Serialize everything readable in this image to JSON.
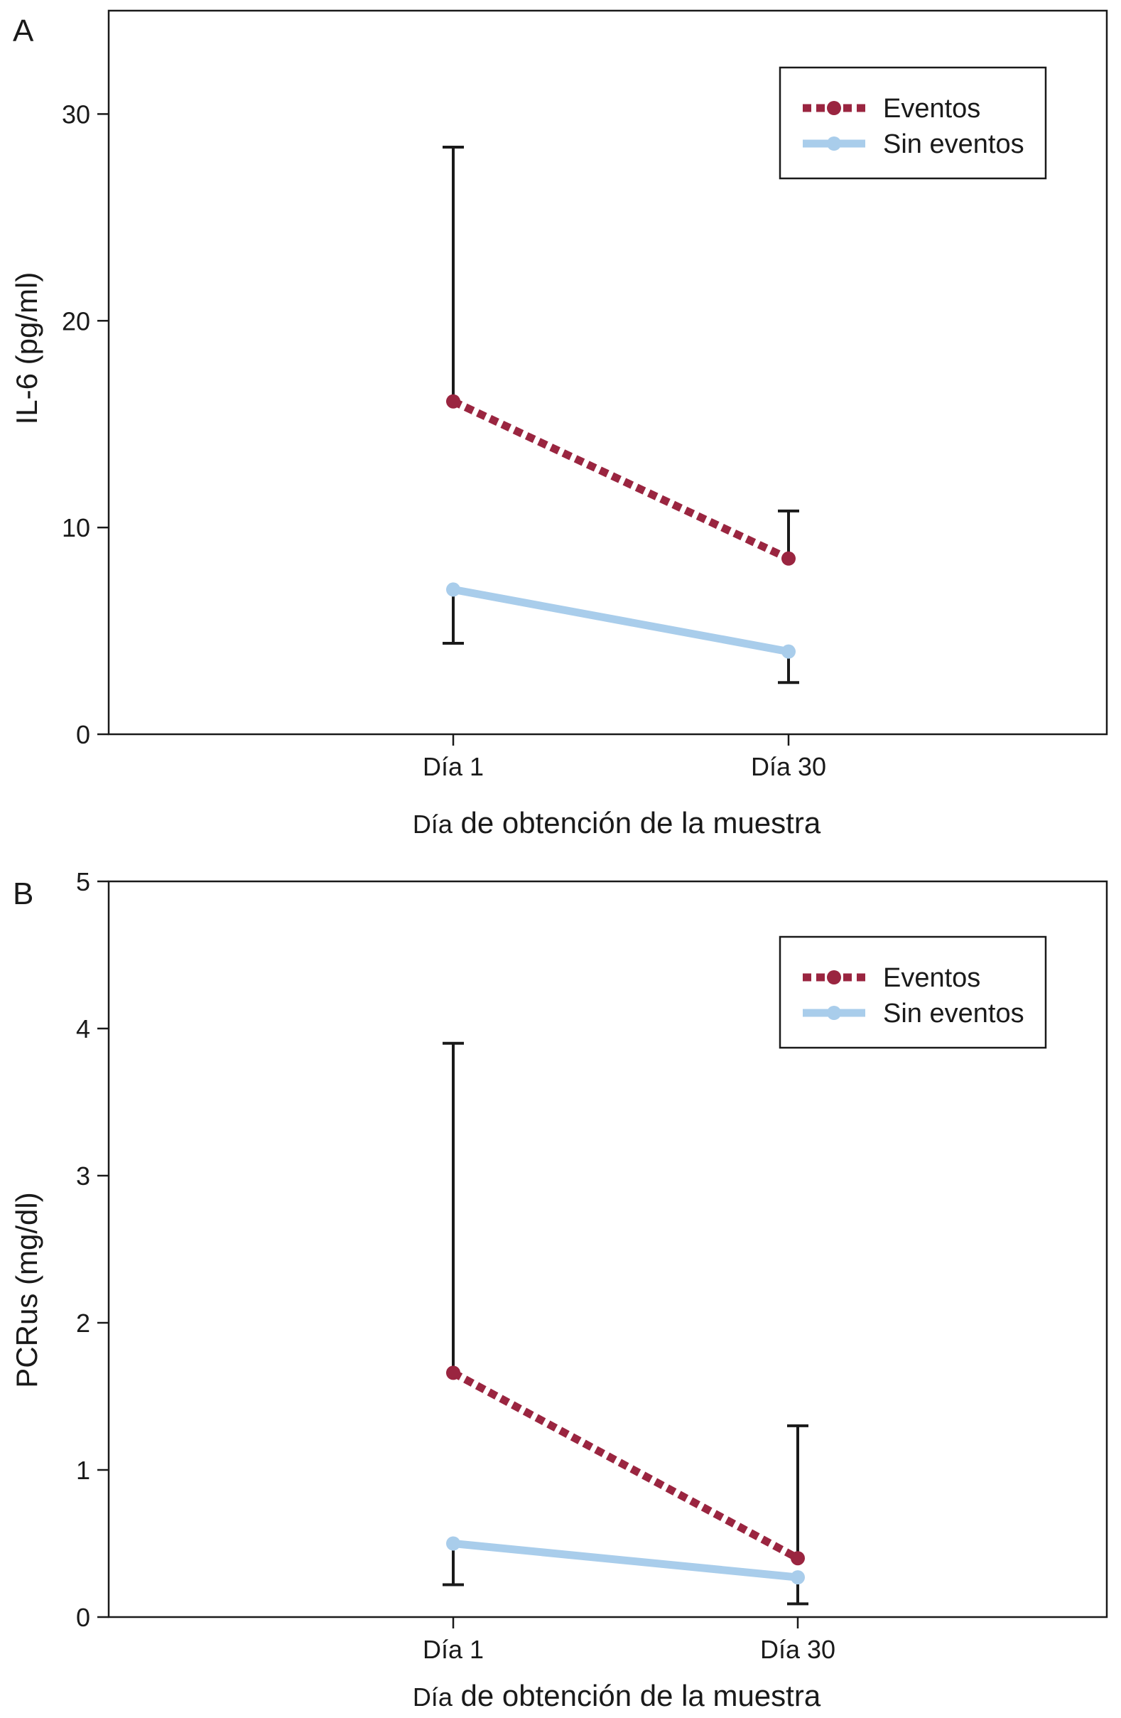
{
  "colors": {
    "eventos": "#9a2540",
    "sin_eventos": "#a9cdeb",
    "errorbar": "#1a1a1a",
    "axis": "#1a1a1a"
  },
  "chart_data": [
    {
      "type": "line",
      "panel_label": "A",
      "categories": [
        "Día 1",
        "Día 30"
      ],
      "series": [
        {
          "name": "Eventos",
          "values": [
            16.1,
            8.5
          ],
          "error_upper": [
            28.4,
            10.8
          ],
          "error_lower": [
            null,
            null
          ],
          "style": "dashed"
        },
        {
          "name": "Sin eventos",
          "values": [
            7.0,
            4.0
          ],
          "error_upper": [
            null,
            null
          ],
          "error_lower": [
            4.4,
            2.5
          ],
          "style": "solid"
        }
      ],
      "ylabel": "IL-6 (pg/ml)",
      "xlabel_prefix": "Día",
      "xlabel_rest": " de obtención de la muestra",
      "ylim": [
        0,
        35
      ],
      "yticks": [
        0,
        10,
        20,
        30
      ],
      "ytick_labels": [
        "0",
        "10",
        "20",
        "30"
      ],
      "legend": [
        "Eventos",
        "Sin eventos"
      ],
      "legend_position": "top-right",
      "grid": false
    },
    {
      "type": "line",
      "panel_label": "B",
      "categories": [
        "Día 1",
        "Día 30"
      ],
      "series": [
        {
          "name": "Eventos",
          "values": [
            1.66,
            0.4
          ],
          "error_upper": [
            3.9,
            1.3
          ],
          "error_lower": [
            null,
            null
          ],
          "style": "dashed"
        },
        {
          "name": "Sin eventos",
          "values": [
            0.5,
            0.27
          ],
          "error_upper": [
            null,
            null
          ],
          "error_lower": [
            0.22,
            0.09
          ],
          "style": "solid"
        }
      ],
      "ylabel": "PCRus (mg/dl)",
      "xlabel_prefix": "Día",
      "xlabel_rest": " de obtención de la muestra",
      "ylim": [
        0,
        5
      ],
      "yticks": [
        0,
        1,
        2,
        3,
        4,
        5
      ],
      "ytick_labels": [
        "0",
        "1",
        "2",
        "3",
        "4",
        "5"
      ],
      "legend": [
        "Eventos",
        "Sin eventos"
      ],
      "legend_position": "top-right",
      "grid": false
    }
  ]
}
